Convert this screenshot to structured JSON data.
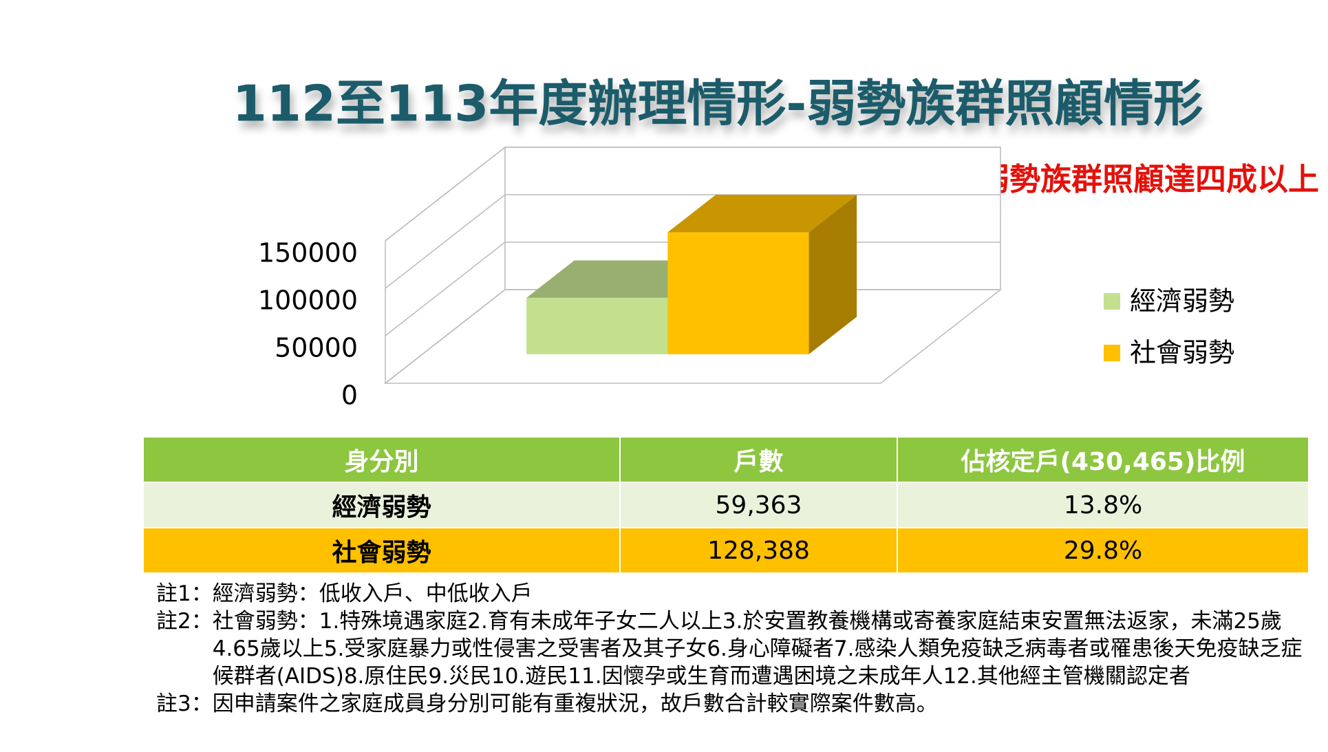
{
  "chart_data": {
    "type": "bar",
    "title": "112至113年度辦理情形-弱勢族群照顧情形",
    "subtitle": "弱勢族群照顧達四成以上",
    "categories": [
      null
    ],
    "series": [
      {
        "name": "經濟弱勢",
        "color": "#c3e08f",
        "values": [
          59363
        ]
      },
      {
        "name": "社會弱勢",
        "color": "#ffc000",
        "values": [
          128388
        ]
      }
    ],
    "ylim": [
      0,
      150000
    ],
    "yticks": [
      0,
      50000,
      100000,
      150000
    ],
    "grid": true,
    "legend": "right"
  },
  "table": {
    "header": [
      "身分別",
      "戶數",
      "佔核定戶(430,465)比例"
    ],
    "rows": [
      [
        "經濟弱勢",
        "59,363",
        "13.8%"
      ],
      [
        "社會弱勢",
        "128,388",
        "29.8%"
      ]
    ]
  },
  "notes": [
    {
      "label": "註1：",
      "text": "經濟弱勢：低收入戶、中低收入戶"
    },
    {
      "label": "註2：",
      "text": "社會弱勢：1.特殊境遇家庭2.育有未成年子女二人以上3.於安置教養機構或寄養家庭結束安置無法返家，未滿25歲4.65歲以上5.受家庭暴力或性侵害之受害者及其子女6.身心障礙者7.感染人類免疫缺乏病毒者或罹患後天免疫缺乏症候群者(AIDS)8.原住民9.災民10.遊民11.因懷孕或生育而遭遇困境之未成年人12.其他經主管機關認定者"
    },
    {
      "label": "註3：",
      "text": "因申請案件之家庭成員身分別可能有重複狀況，故戶數合計較實際案件數高。"
    }
  ]
}
